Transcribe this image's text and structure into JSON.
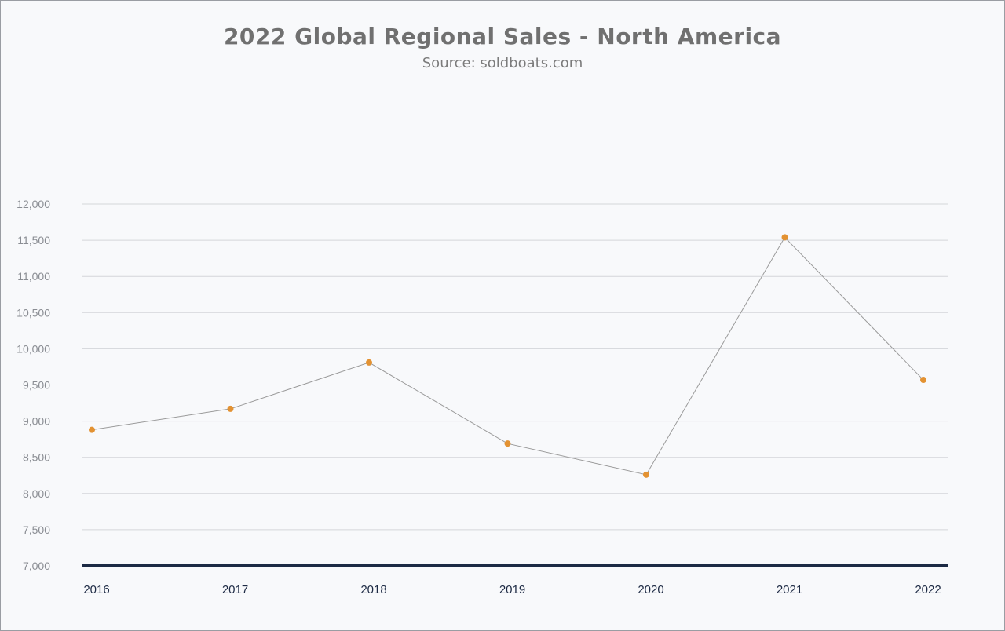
{
  "chart_data": {
    "type": "line",
    "title": "2022 Global Regional Sales - North America",
    "subtitle": "Source: soldboats.com",
    "xlabel": "",
    "ylabel": "",
    "categories": [
      "2016",
      "2017",
      "2018",
      "2019",
      "2020",
      "2021",
      "2022"
    ],
    "series": [
      {
        "values": [
          8880,
          9170,
          9810,
          8690,
          8260,
          11540,
          9570
        ]
      }
    ],
    "ylim": [
      7000,
      12000
    ],
    "yticks": [
      7000,
      7500,
      8000,
      8500,
      9000,
      9500,
      10000,
      10500,
      11000,
      11500,
      12000
    ],
    "ytick_labels": [
      "7,000",
      "7,500",
      "8,000",
      "8,500",
      "9,000",
      "9,500",
      "10,000",
      "10,500",
      "11,000",
      "11,500",
      "12,000"
    ],
    "grid": true,
    "legend": "none",
    "colors": {
      "line": "#9a9a9a",
      "marker": "#e39232",
      "grid": "#d4d6da",
      "baseline": "#1c2a44"
    }
  }
}
